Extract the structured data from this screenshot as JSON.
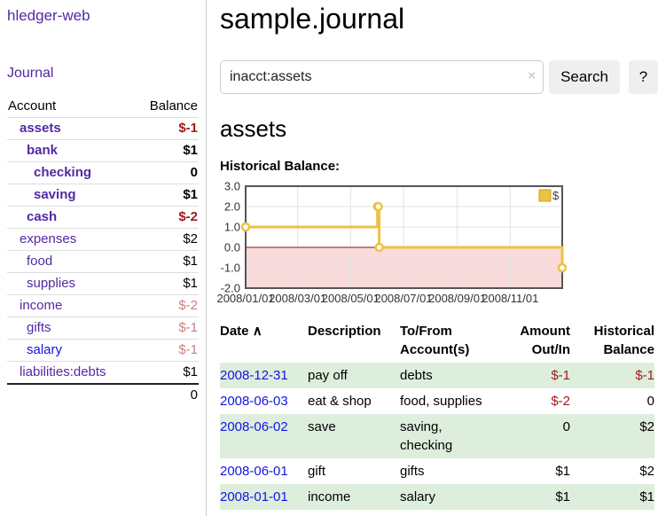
{
  "app": {
    "brand": "hledger-web",
    "nav": {
      "journal": "Journal"
    }
  },
  "sidebar": {
    "columns": {
      "account": "Account",
      "balance": "Balance"
    },
    "rows": [
      {
        "account": "assets",
        "balance": "$-1",
        "level": 1,
        "strong": true,
        "balance_class": "neg-strong",
        "link_class": "visited"
      },
      {
        "account": "bank",
        "balance": "$1",
        "level": 2,
        "strong": true,
        "balance_class": "pos",
        "link_class": "visited"
      },
      {
        "account": "checking",
        "balance": "0",
        "level": 3,
        "strong": true,
        "balance_class": "pos",
        "link_class": "visited"
      },
      {
        "account": "saving",
        "balance": "$1",
        "level": 3,
        "strong": true,
        "balance_class": "pos",
        "link_class": "visited"
      },
      {
        "account": "cash",
        "balance": "$-2",
        "level": 2,
        "strong": true,
        "balance_class": "neg-strong",
        "link_class": "visited"
      },
      {
        "account": "expenses",
        "balance": "$2",
        "level": 1,
        "strong": false,
        "balance_class": "pos",
        "link_class": "visited"
      },
      {
        "account": "food",
        "balance": "$1",
        "level": 2,
        "strong": false,
        "balance_class": "pos",
        "link_class": "visited"
      },
      {
        "account": "supplies",
        "balance": "$1",
        "level": 2,
        "strong": false,
        "balance_class": "pos",
        "link_class": "visited"
      },
      {
        "account": "income",
        "balance": "$-2",
        "level": 1,
        "strong": false,
        "balance_class": "neg-light",
        "link_class": "visited"
      },
      {
        "account": "gifts",
        "balance": "$-1",
        "level": 2,
        "strong": false,
        "balance_class": "neg-light",
        "link_class": "visited"
      },
      {
        "account": "salary",
        "balance": "$-1",
        "level": 2,
        "strong": false,
        "balance_class": "neg-light",
        "link_class": "unvisited"
      },
      {
        "account": "liabilities:debts",
        "balance": "$1",
        "level": 1,
        "strong": false,
        "balance_class": "pos",
        "link_class": "visited"
      }
    ],
    "total": "0"
  },
  "main": {
    "title": "sample.journal",
    "search": {
      "value": "inacct:assets",
      "clear_icon": "×",
      "search_button": "Search",
      "help_button": "?"
    },
    "section_heading": "assets",
    "chart_label": "Historical Balance:"
  },
  "chart_data": {
    "type": "line",
    "title": "Historical Balance",
    "step": true,
    "series": [
      {
        "name": "$",
        "color": "#EDC240",
        "points": [
          [
            "2008-01-01",
            1
          ],
          [
            "2008-06-01",
            2
          ],
          [
            "2008-06-02",
            2
          ],
          [
            "2008-06-03",
            0
          ],
          [
            "2008-12-31",
            -1
          ]
        ]
      }
    ],
    "x_range": [
      "2008-01-01",
      "2008-12-31"
    ],
    "ylim": [
      -2,
      3
    ],
    "yticks": [
      "3.0",
      "2.0",
      "1.0",
      "0.0",
      "-1.0",
      "-2.0"
    ],
    "xticks": [
      "2008/01/01",
      "2008/03/01",
      "2008/05/01",
      "2008/07/01",
      "2008/09/01",
      "2008/11/01"
    ],
    "grid": true,
    "legend": {
      "label": "$",
      "position": "top-right"
    },
    "negative_region_color": "#f9dbdb",
    "zero_line_color": "#8c0d0d",
    "border_color": "#545454",
    "grid_color": "#e3e3e3"
  },
  "register": {
    "sort_icon": "∧",
    "headers": {
      "date": "Date",
      "description": "Description",
      "accounts": "To/From Account(s)",
      "amount": "Amount Out/In",
      "balance": "Historical Balance"
    },
    "rows": [
      {
        "date": "2008-12-31",
        "description": "pay off",
        "accounts": "debts",
        "amount": "$-1",
        "balance": "$-1",
        "amount_neg": true,
        "balance_neg": true,
        "shaded": true
      },
      {
        "date": "2008-06-03",
        "description": "eat & shop",
        "accounts": "food, supplies",
        "amount": "$-2",
        "balance": "0",
        "amount_neg": true,
        "balance_neg": false,
        "shaded": false
      },
      {
        "date": "2008-06-02",
        "description": "save",
        "accounts": "saving, checking",
        "amount": "0",
        "balance": "$2",
        "amount_neg": false,
        "balance_neg": false,
        "shaded": true
      },
      {
        "date": "2008-06-01",
        "description": "gift",
        "accounts": "gifts",
        "amount": "$1",
        "balance": "$2",
        "amount_neg": false,
        "balance_neg": false,
        "shaded": false
      },
      {
        "date": "2008-01-01",
        "description": "income",
        "accounts": "salary",
        "amount": "$1",
        "balance": "$1",
        "amount_neg": false,
        "balance_neg": false,
        "shaded": true
      }
    ]
  },
  "colors": {
    "link_purple": "#5229a3",
    "link_blue": "#1515e0",
    "negative_strong": "#9c1a1a",
    "negative_light": "#c98282",
    "row_green": "#ddeedd",
    "chart_line": "#EDC240",
    "button_bg": "#efefef"
  }
}
